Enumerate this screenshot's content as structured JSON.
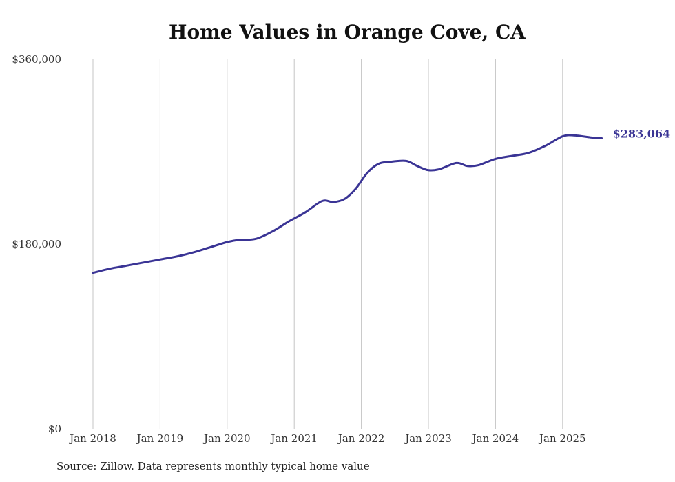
{
  "chart_data": {
    "type": "line",
    "title": "Home Values in Orange Cove, CA",
    "source": "Source: Zillow. Data represents monthly typical home value",
    "ylim": [
      0,
      360000
    ],
    "yticks": [
      {
        "value": 0,
        "label": "$0"
      },
      {
        "value": 180000,
        "label": "$180,000"
      },
      {
        "value": 360000,
        "label": "$360,000"
      }
    ],
    "xticks": [
      {
        "value": "2018-01",
        "label": "Jan 2018"
      },
      {
        "value": "2019-01",
        "label": "Jan 2019"
      },
      {
        "value": "2020-01",
        "label": "Jan 2020"
      },
      {
        "value": "2021-01",
        "label": "Jan 2021"
      },
      {
        "value": "2022-01",
        "label": "Jan 2022"
      },
      {
        "value": "2023-01",
        "label": "Jan 2023"
      },
      {
        "value": "2024-01",
        "label": "Jan 2024"
      },
      {
        "value": "2025-01",
        "label": "Jan 2025"
      }
    ],
    "grid": {
      "vertical": true,
      "horizontal": false
    },
    "line_color": "#3a3495",
    "end_label": "$283,064",
    "series": [
      {
        "x": [
          "2018-01",
          "2018-04",
          "2018-07",
          "2018-10",
          "2019-01",
          "2019-04",
          "2019-07",
          "2019-10",
          "2020-01",
          "2020-03",
          "2020-06",
          "2020-09",
          "2020-12",
          "2021-03",
          "2021-06",
          "2021-08",
          "2021-10",
          "2021-12",
          "2022-02",
          "2022-04",
          "2022-06",
          "2022-09",
          "2022-11",
          "2023-01",
          "2023-03",
          "2023-06",
          "2023-08",
          "2023-10",
          "2024-01",
          "2024-04",
          "2024-07",
          "2024-10",
          "2025-01",
          "2025-03",
          "2025-06",
          "2025-08"
        ],
        "y": [
          152000,
          156000,
          159000,
          162000,
          165000,
          168000,
          172000,
          177000,
          182000,
          184000,
          185000,
          192000,
          202000,
          211000,
          222000,
          221000,
          224000,
          234000,
          249000,
          258000,
          260000,
          261000,
          256000,
          252000,
          253000,
          259000,
          256000,
          257000,
          263000,
          266000,
          269000,
          276000,
          285000,
          286000,
          284000,
          283064
        ]
      }
    ]
  }
}
